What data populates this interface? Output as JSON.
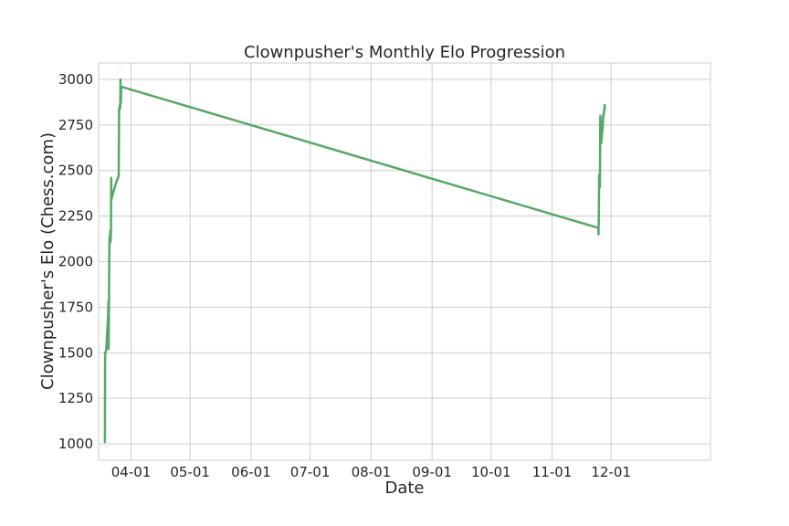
{
  "chart_data": {
    "type": "line",
    "title": "Clownpusher's Monthly Elo Progression",
    "xlabel": "Date",
    "ylabel": "Clownpusher's Elo (Chess.com)",
    "grid": true,
    "legend": "none",
    "xlim": [
      -16.5,
      294.5
    ],
    "ylim": [
      910,
      3090
    ],
    "x_ticks": [
      {
        "label": "04-01",
        "day": 0
      },
      {
        "label": "05-01",
        "day": 30
      },
      {
        "label": "06-01",
        "day": 61
      },
      {
        "label": "07-01",
        "day": 91
      },
      {
        "label": "08-01",
        "day": 122
      },
      {
        "label": "09-01",
        "day": 153
      },
      {
        "label": "10-01",
        "day": 183
      },
      {
        "label": "11-01",
        "day": 214
      },
      {
        "label": "12-01",
        "day": 244
      }
    ],
    "y_ticks": [
      1000,
      1250,
      1500,
      1750,
      2000,
      2250,
      2500,
      2750,
      3000
    ],
    "series": [
      {
        "name": "",
        "color": "#55a868",
        "points": [
          [
            -13.3,
            1010
          ],
          [
            -13.2,
            1500
          ],
          [
            -12.9,
            1500
          ],
          [
            -12.6,
            1520
          ],
          [
            -12.3,
            1580
          ],
          [
            -12.0,
            1640
          ],
          [
            -11.7,
            1700
          ],
          [
            -11.5,
            1780
          ],
          [
            -11.4,
            1520
          ],
          [
            -11.1,
            2000
          ],
          [
            -11.0,
            2130
          ],
          [
            -10.8,
            2100
          ],
          [
            -10.6,
            2170
          ],
          [
            -10.4,
            2110
          ],
          [
            -10.2,
            2180
          ],
          [
            -10.1,
            2460
          ],
          [
            -10.0,
            2340
          ],
          [
            -9.3,
            2370
          ],
          [
            -8.5,
            2400
          ],
          [
            -7.7,
            2430
          ],
          [
            -6.3,
            2470
          ],
          [
            -6.1,
            2840
          ],
          [
            -5.9,
            2830
          ],
          [
            -5.7,
            2860
          ],
          [
            -5.5,
            2845
          ],
          [
            -5.4,
            3000
          ],
          [
            -5.2,
            2870
          ],
          [
            -5.0,
            2960
          ],
          [
            237.5,
            2185
          ],
          [
            237.6,
            2150
          ],
          [
            237.8,
            2300
          ],
          [
            237.9,
            2470
          ],
          [
            238.1,
            2480
          ],
          [
            238.3,
            2410
          ],
          [
            238.5,
            2800
          ],
          [
            238.7,
            2780
          ],
          [
            239.0,
            2650
          ],
          [
            239.4,
            2700
          ],
          [
            239.8,
            2740
          ],
          [
            240.0,
            2810
          ],
          [
            240.2,
            2800
          ],
          [
            240.5,
            2830
          ],
          [
            240.7,
            2860
          ],
          [
            240.9,
            2840
          ]
        ]
      }
    ]
  }
}
